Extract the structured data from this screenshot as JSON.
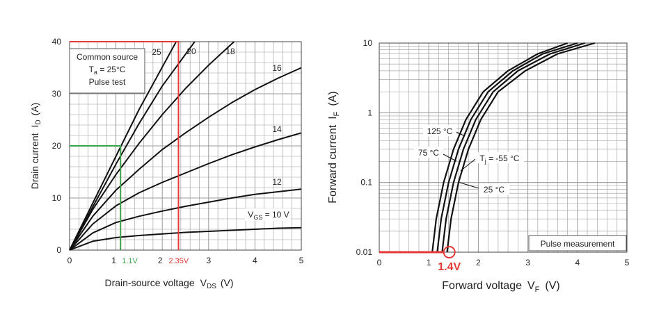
{
  "chart_data": [
    {
      "type": "line",
      "title": "",
      "xlabel": "Drain-source voltage",
      "xlabel_symbol": "V",
      "xlabel_sub": "DS",
      "xlabel_unit": "(V)",
      "ylabel": "Drain current",
      "ylabel_symbol": "I",
      "ylabel_sub": "D",
      "ylabel_unit": "(A)",
      "xlim": [
        0,
        5
      ],
      "ylim": [
        0,
        40
      ],
      "grid": true,
      "x_ticks": [
        "0",
        "1",
        "2",
        "3",
        "4",
        "5"
      ],
      "y_ticks": [
        "0",
        "10",
        "20",
        "30",
        "40"
      ],
      "conditions": [
        "Common source",
        "T",
        "a",
        " = 25°C",
        "Pulse test"
      ],
      "series": [
        {
          "name": "25",
          "x": [
            0,
            0.5,
            1.0,
            1.5,
            2.3
          ],
          "y": [
            0,
            9.0,
            18.0,
            27.0,
            40.0
          ]
        },
        {
          "name": "20",
          "x": [
            0,
            0.5,
            1.0,
            1.5,
            2.0,
            2.7
          ],
          "y": [
            0,
            8.3,
            16.5,
            24.3,
            31.5,
            40.0
          ]
        },
        {
          "name": "18",
          "x": [
            0,
            0.5,
            1.0,
            1.5,
            2.0,
            2.5,
            3.0,
            3.55
          ],
          "y": [
            0,
            7.8,
            14.5,
            20.5,
            26.0,
            31.0,
            35.5,
            40.0
          ]
        },
        {
          "name": "16",
          "x": [
            0,
            0.5,
            1.0,
            1.5,
            2.0,
            2.5,
            3.0,
            3.5,
            4.0,
            4.5,
            5.0
          ],
          "y": [
            0,
            6.5,
            11.5,
            15.5,
            19.3,
            22.5,
            25.5,
            28.3,
            30.8,
            33.0,
            35.0
          ]
        },
        {
          "name": "14",
          "x": [
            0,
            0.5,
            1.0,
            1.5,
            2.0,
            2.5,
            3.0,
            3.5,
            4.0,
            4.5,
            5.0
          ],
          "y": [
            0,
            5.0,
            8.5,
            11.0,
            13.0,
            14.8,
            16.6,
            18.3,
            19.8,
            21.2,
            22.5
          ]
        },
        {
          "name": "12",
          "x": [
            0,
            0.5,
            1.0,
            1.5,
            2.0,
            2.5,
            3.0,
            3.5,
            4.0,
            4.5,
            5.0
          ],
          "y": [
            0,
            3.3,
            5.3,
            6.5,
            7.5,
            8.4,
            9.2,
            10.0,
            10.7,
            11.2,
            11.7
          ]
        },
        {
          "name": "V_GS = 10 V",
          "x": [
            0,
            0.5,
            1.0,
            1.5,
            2.0,
            2.5,
            3.0,
            3.5,
            4.0,
            4.5,
            5.0
          ],
          "y": [
            0,
            1.7,
            2.4,
            2.8,
            3.1,
            3.4,
            3.6,
            3.8,
            4.0,
            4.2,
            4.3
          ]
        }
      ],
      "curve_labels": {
        "vgs_symbol": "V",
        "vgs_sub": "GS",
        "vgs_rest": " = 10 V"
      },
      "annotations": [
        {
          "label": "1.1V",
          "x": 1.1,
          "y": 20,
          "color": "#3aa24a"
        },
        {
          "label": "2.35V",
          "x": 2.35,
          "y": 40,
          "color": "#e53935"
        }
      ]
    },
    {
      "type": "line",
      "title": "",
      "xlabel": "Forward voltage",
      "xlabel_symbol": "V",
      "xlabel_sub": "F",
      "xlabel_unit": "(V)",
      "ylabel": "Forward current",
      "ylabel_symbol": "I",
      "ylabel_sub": "F",
      "ylabel_unit": "(A)",
      "xlim": [
        0,
        5
      ],
      "ylim": [
        0.01,
        10
      ],
      "yscale": "log",
      "grid": true,
      "x_ticks": [
        "0",
        "1",
        "2",
        "3",
        "4",
        "5"
      ],
      "y_ticks": [
        "0.01",
        "0.1",
        "1",
        "10"
      ],
      "note": "Pulse measurement",
      "series": [
        {
          "name": "125 °C",
          "x": [
            1.07,
            1.15,
            1.3,
            1.5,
            1.75,
            2.1,
            2.6,
            3.2,
            3.8
          ],
          "y": [
            0.01,
            0.03,
            0.1,
            0.3,
            0.8,
            2.0,
            4.0,
            7.0,
            10.0
          ]
        },
        {
          "name": "75 °C",
          "x": [
            1.17,
            1.25,
            1.4,
            1.6,
            1.85,
            2.2,
            2.7,
            3.3,
            4.0
          ],
          "y": [
            0.01,
            0.03,
            0.1,
            0.3,
            0.8,
            2.0,
            4.0,
            7.0,
            10.0
          ]
        },
        {
          "name": "T_j = -55 °C",
          "x": [
            1.27,
            1.35,
            1.5,
            1.7,
            1.95,
            2.3,
            2.8,
            3.45,
            4.15
          ],
          "y": [
            0.01,
            0.03,
            0.1,
            0.3,
            0.8,
            2.0,
            4.0,
            7.0,
            10.0
          ]
        },
        {
          "name": "25 °C",
          "x": [
            1.37,
            1.45,
            1.6,
            1.8,
            2.05,
            2.4,
            2.95,
            3.6,
            4.35
          ],
          "y": [
            0.01,
            0.03,
            0.1,
            0.3,
            0.8,
            2.0,
            4.0,
            7.0,
            10.0
          ]
        }
      ],
      "curve_labels": {
        "tj_symbol": "T",
        "tj_sub": "j",
        "tj_rest": " = -55 °C"
      },
      "annotations": [
        {
          "label": "1.4V",
          "x": 1.4,
          "y": 0.01,
          "color": "#e53935"
        }
      ]
    }
  ],
  "colors": {
    "curve": "#111111",
    "grid": "#9a9a9a",
    "red": "#e53935",
    "green": "#3aa24a"
  }
}
